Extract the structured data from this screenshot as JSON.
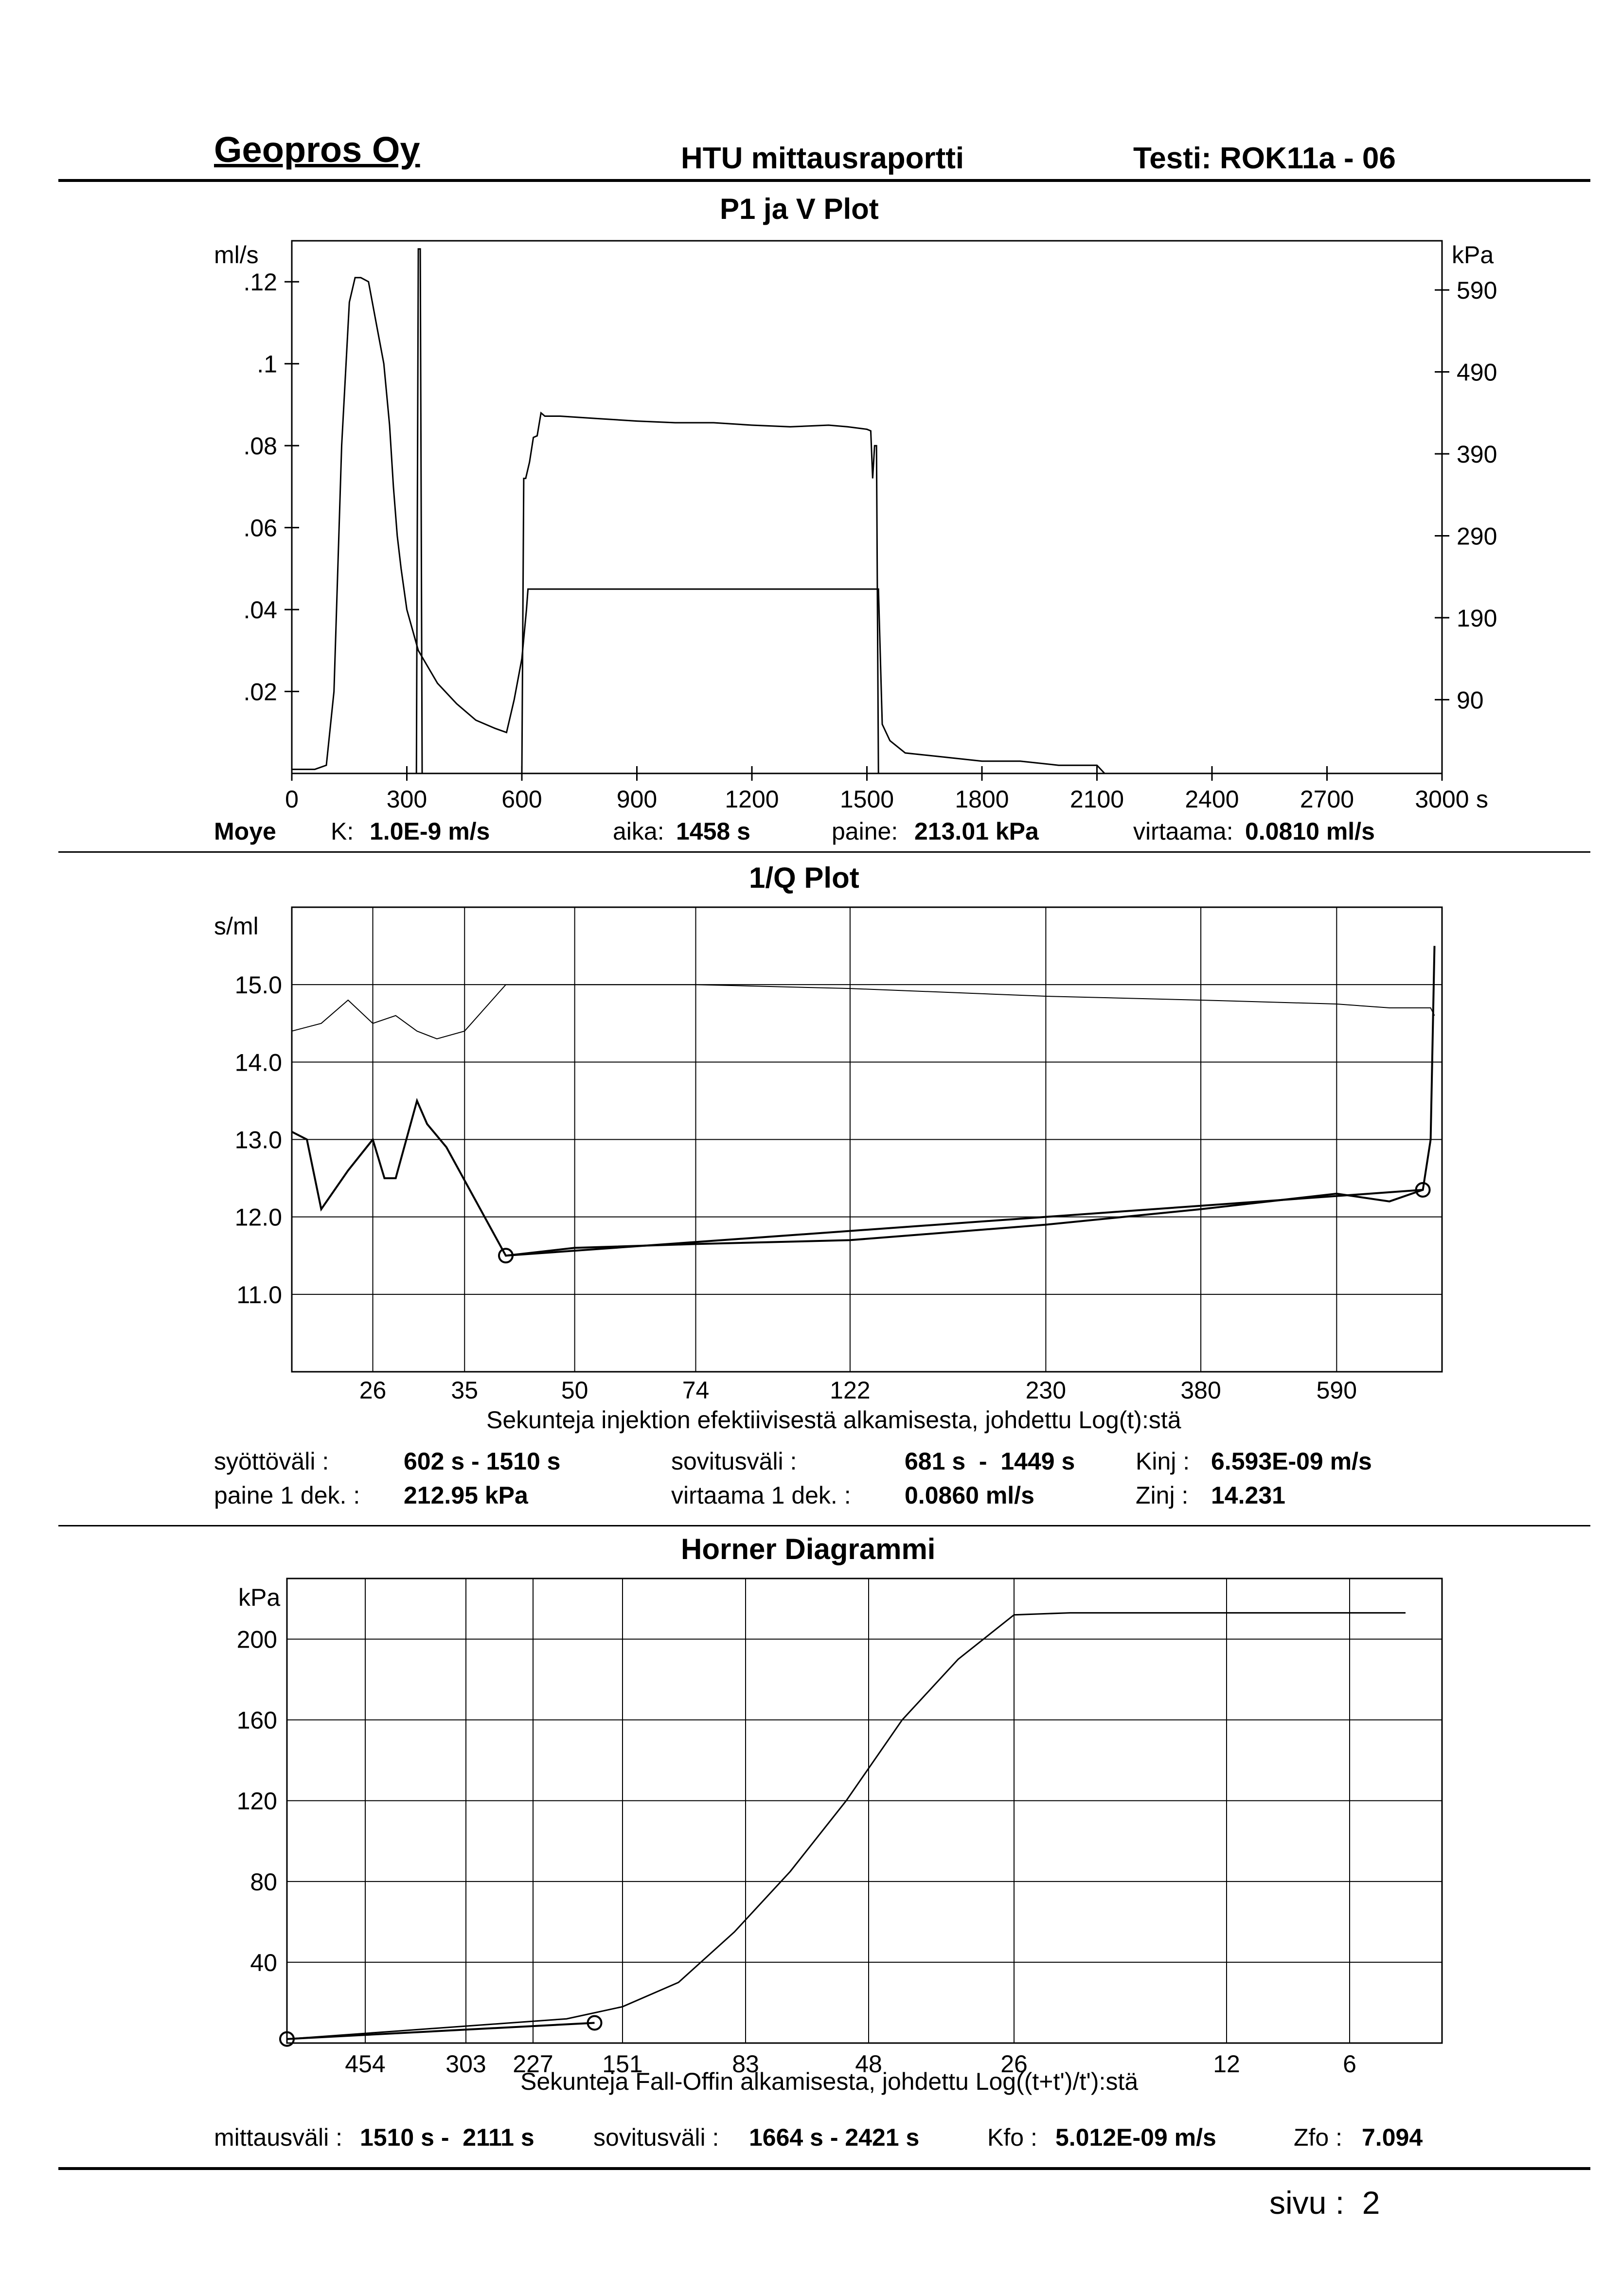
{
  "header": {
    "company": "Geopros Oy",
    "report": "HTU mittausraportti",
    "test": "Testi: ROK11a - 06"
  },
  "plot1": {
    "title": "P1 ja V Plot",
    "left_unit": "ml/s",
    "right_unit": "kPa",
    "x_unit": "s",
    "left_ticks": [
      ".12",
      ".1",
      ".08",
      ".06",
      ".04",
      ".02"
    ],
    "right_ticks": [
      "590",
      "490",
      "390",
      "290",
      "190",
      "90"
    ],
    "x_ticks": [
      "0",
      "300",
      "600",
      "900",
      "1200",
      "1500",
      "1800",
      "2100",
      "2400",
      "2700",
      "3000"
    ],
    "info": {
      "method": "Moye",
      "k_label": "K:",
      "k_value": "1.0E-9 m/s",
      "aika_label": "aika:",
      "aika_value": "1458 s",
      "paine_label": "paine:",
      "paine_value": "213.01 kPa",
      "virtaama_label": "virtaama:",
      "virtaama_value": "0.0810 ml/s"
    }
  },
  "plot2": {
    "title": "1/Q Plot",
    "y_unit": "s/ml",
    "y_ticks": [
      "15.0",
      "14.0",
      "13.0",
      "12.0",
      "11.0"
    ],
    "x_ticks": [
      "26",
      "35",
      "50",
      "74",
      "122",
      "230",
      "380",
      "590"
    ],
    "x_label": "Sekunteja injektion efektiivisestä alkamisesta, johdettu Log(t):stä",
    "info": {
      "syotto_label": "syöttöväli :",
      "syotto_value": "602 s - 1510 s",
      "sovitus_label": "sovitusväli :",
      "sovitus_value": "681 s  -  1449 s",
      "kinj_label": "Kinj :",
      "kinj_value": "6.593E-09 m/s",
      "paine_label": "paine 1 dek. :",
      "paine_value": "212.95 kPa",
      "virtaama_label": "virtaama 1 dek. :",
      "virtaama_value": "0.0860 ml/s",
      "zinj_label": "Zinj :",
      "zinj_value": "14.231"
    }
  },
  "plot3": {
    "title": "Horner Diagrammi",
    "y_unit": "kPa",
    "y_ticks": [
      "200",
      "160",
      "120",
      "80",
      "40"
    ],
    "x_ticks": [
      "454",
      "303",
      "227",
      "151",
      "83",
      "48",
      "26",
      "12",
      "6"
    ],
    "x_label": "Sekunteja Fall-Offin alkamisesta, johdettu Log((t+t')/t'):stä",
    "info": {
      "mittaus_label": "mittausväli :",
      "mittaus_value": "1510 s -  2111 s",
      "sovitus_label": "sovitusväli :",
      "sovitus_value": "1664 s - 2421 s",
      "kfo_label": "Kfo :",
      "kfo_value": "5.012E-09 m/s",
      "zfo_label": "Zfo :",
      "zfo_value": "7.094"
    }
  },
  "footer": {
    "page": "sivu :  2"
  },
  "chart_data": [
    {
      "type": "line",
      "title": "P1 ja V Plot",
      "xlabel": "s",
      "ylabel": "ml/s",
      "y2label": "kPa",
      "xlim": [
        0,
        3000
      ],
      "ylim": [
        0,
        0.13
      ],
      "y2lim": [
        0,
        650
      ],
      "series": [
        {
          "axis": "left",
          "x": [
            0,
            60,
            90,
            110,
            130,
            150,
            165,
            180,
            200,
            220,
            240,
            255,
            265,
            275,
            285,
            300,
            330,
            380,
            430,
            480,
            530,
            560,
            580,
            600,
            612,
            616,
            640,
            1530,
            1540,
            1560,
            1600,
            1700,
            1800,
            1900,
            2000,
            2100,
            2110,
            2120
          ],
          "y": [
            0.001,
            0.001,
            0.002,
            0.02,
            0.08,
            0.115,
            0.121,
            0.121,
            0.12,
            0.11,
            0.1,
            0.085,
            0.07,
            0.058,
            0.05,
            0.04,
            0.03,
            0.022,
            0.017,
            0.013,
            0.011,
            0.01,
            0.018,
            0.028,
            0.04,
            0.045,
            0.045,
            0.045,
            0.012,
            0.008,
            0.005,
            0.004,
            0.003,
            0.003,
            0.002,
            0.002,
            0.001,
            0.0
          ]
        },
        {
          "axis": "right",
          "x": [
            325,
            330,
            335,
            340,
            600,
            605,
            610,
            620,
            630,
            640,
            650,
            660,
            700,
            800,
            900,
            1000,
            1100,
            1200,
            1300,
            1400,
            1450,
            1500,
            1510,
            1515,
            1520,
            1525,
            1530,
            1535
          ],
          "y": [
            0,
            640,
            640,
            0,
            0,
            360,
            360,
            380,
            410,
            412,
            440,
            436,
            436,
            433,
            430,
            428,
            428,
            425,
            423,
            425,
            423,
            420,
            418,
            360,
            400,
            400,
            0,
            0
          ]
        }
      ]
    },
    {
      "type": "line",
      "title": "1/Q Plot",
      "ylabel": "s/ml",
      "xlabel": "Sekunteja injektion efektiivisestä alkamisesta, johdettu Log(t):stä",
      "ylim": [
        10,
        16
      ],
      "x_tick_labels": [
        "26",
        "35",
        "50",
        "74",
        "122",
        "230",
        "380",
        "590"
      ],
      "series": [
        {
          "x": [
            20,
            22,
            24,
            26,
            28,
            30,
            32,
            35,
            40,
            50,
            74,
            122,
            230,
            380,
            590,
            700,
            800,
            810
          ],
          "y": [
            14.4,
            14.5,
            14.8,
            14.5,
            14.6,
            14.4,
            14.3,
            14.4,
            15.0,
            15.0,
            15.0,
            14.95,
            14.85,
            14.8,
            14.75,
            14.7,
            14.7,
            14.6
          ]
        },
        {
          "x": [
            20,
            21,
            22,
            24,
            26,
            27,
            28,
            30,
            31,
            33,
            40,
            50,
            74,
            122,
            230,
            380,
            590,
            700,
            780,
            800,
            810
          ],
          "y": [
            13.1,
            13.0,
            12.1,
            12.6,
            13.0,
            12.5,
            12.5,
            13.5,
            13.2,
            12.9,
            11.5,
            11.6,
            11.65,
            11.7,
            11.9,
            12.1,
            12.3,
            12.2,
            12.35,
            13.0,
            15.5
          ]
        },
        {
          "x": [
            40,
            780
          ],
          "y": [
            11.5,
            12.35
          ]
        }
      ]
    },
    {
      "type": "line",
      "title": "Horner Diagrammi",
      "ylabel": "kPa",
      "xlabel": "Sekunteja Fall-Offin alkamisesta, johdettu Log((t+t')/t'):stä",
      "ylim": [
        0,
        230
      ],
      "x_tick_labels": [
        "454",
        "303",
        "227",
        "151",
        "83",
        "48",
        "26",
        "12",
        "6"
      ],
      "series": [
        {
          "x": [
            0,
            0.1,
            0.2,
            0.25,
            0.3,
            0.35,
            0.4,
            0.45,
            0.5,
            0.55,
            0.6,
            0.65,
            0.7,
            0.73,
            0.8,
            0.85,
            0.9,
            0.95,
            1.0
          ],
          "y": [
            2,
            6,
            10,
            12,
            18,
            30,
            55,
            85,
            120,
            160,
            190,
            212,
            213,
            213,
            213,
            213,
            213,
            213,
            213
          ]
        },
        {
          "x": [
            0,
            0.275
          ],
          "y": [
            2,
            10
          ]
        }
      ]
    }
  ]
}
